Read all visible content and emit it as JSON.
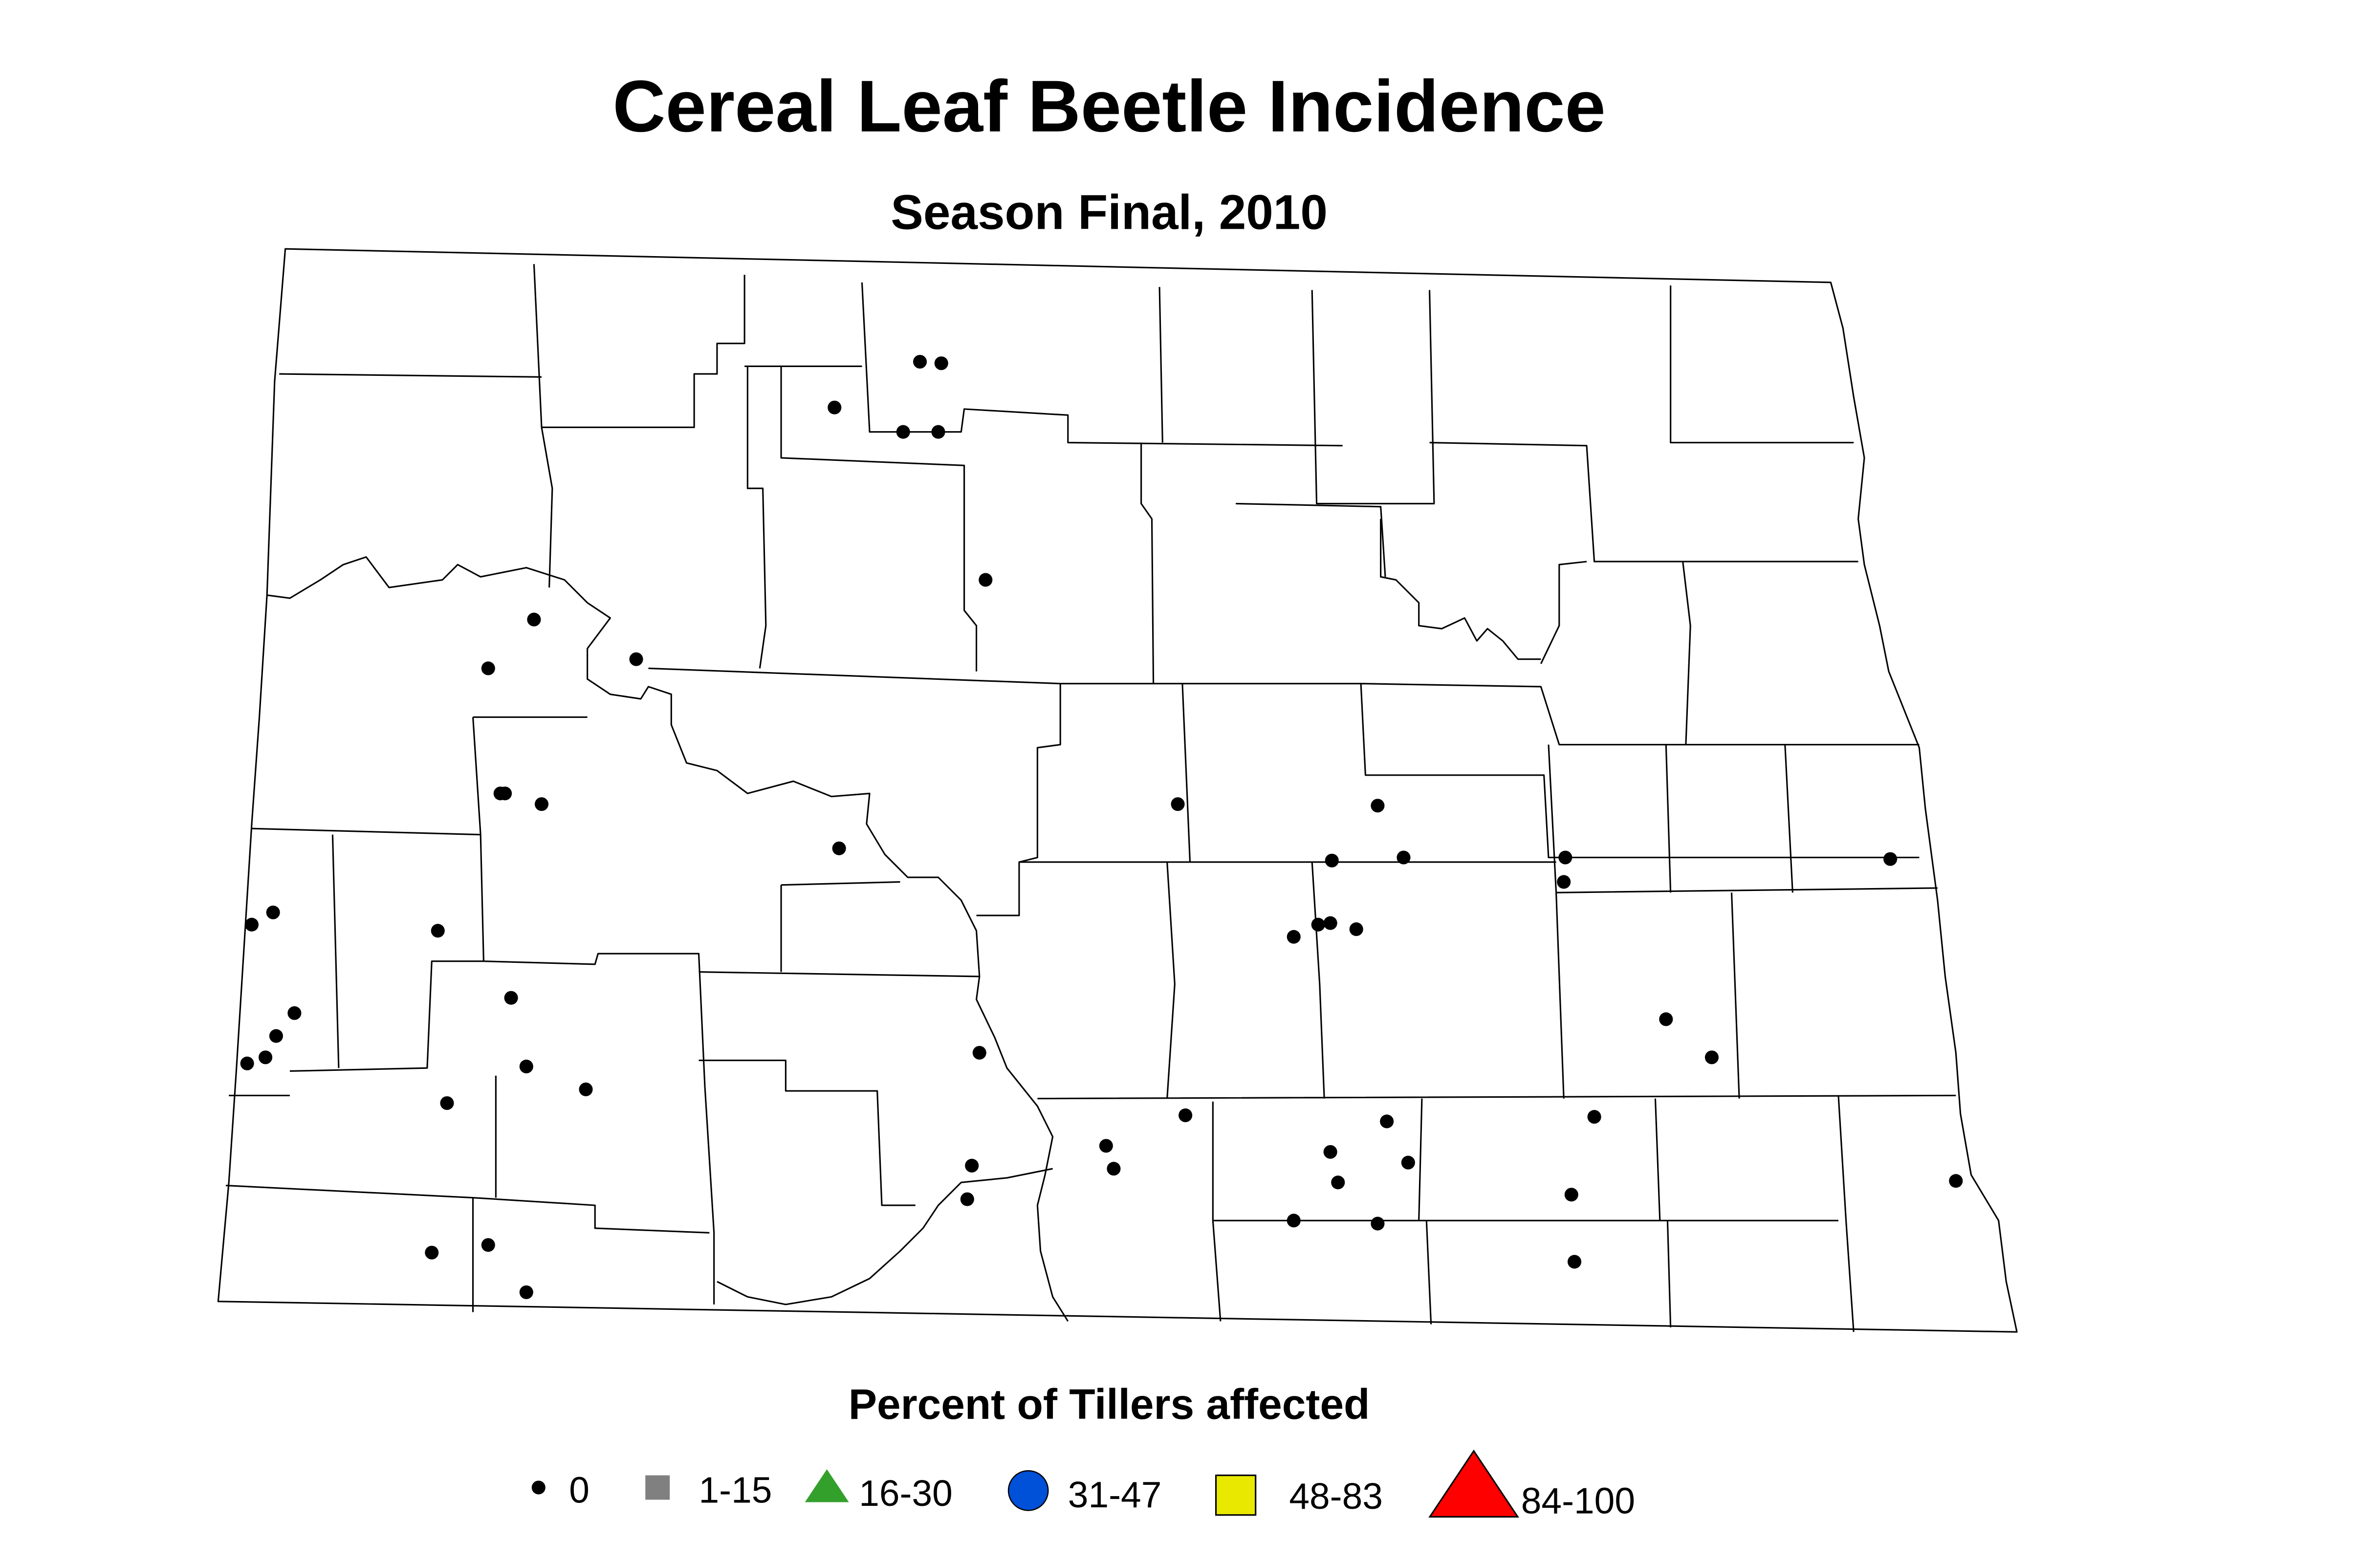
{
  "title": "Cereal Leaf Beetle Incidence",
  "subtitle": "Season Final, 2010",
  "legend": {
    "title": "Percent of Tillers affected",
    "items": [
      {
        "label": "0",
        "shape": "dot",
        "color": "#000000"
      },
      {
        "label": "1-15",
        "shape": "square",
        "color": "#808080"
      },
      {
        "label": "16-30",
        "shape": "triangle",
        "color": "#33a02c"
      },
      {
        "label": "31-47",
        "shape": "circle",
        "color": "#0050d8"
      },
      {
        "label": "48-83",
        "shape": "square",
        "color": "#e8e800"
      },
      {
        "label": "84-100",
        "shape": "triangle",
        "color": "#ff0000"
      }
    ]
  }
}
